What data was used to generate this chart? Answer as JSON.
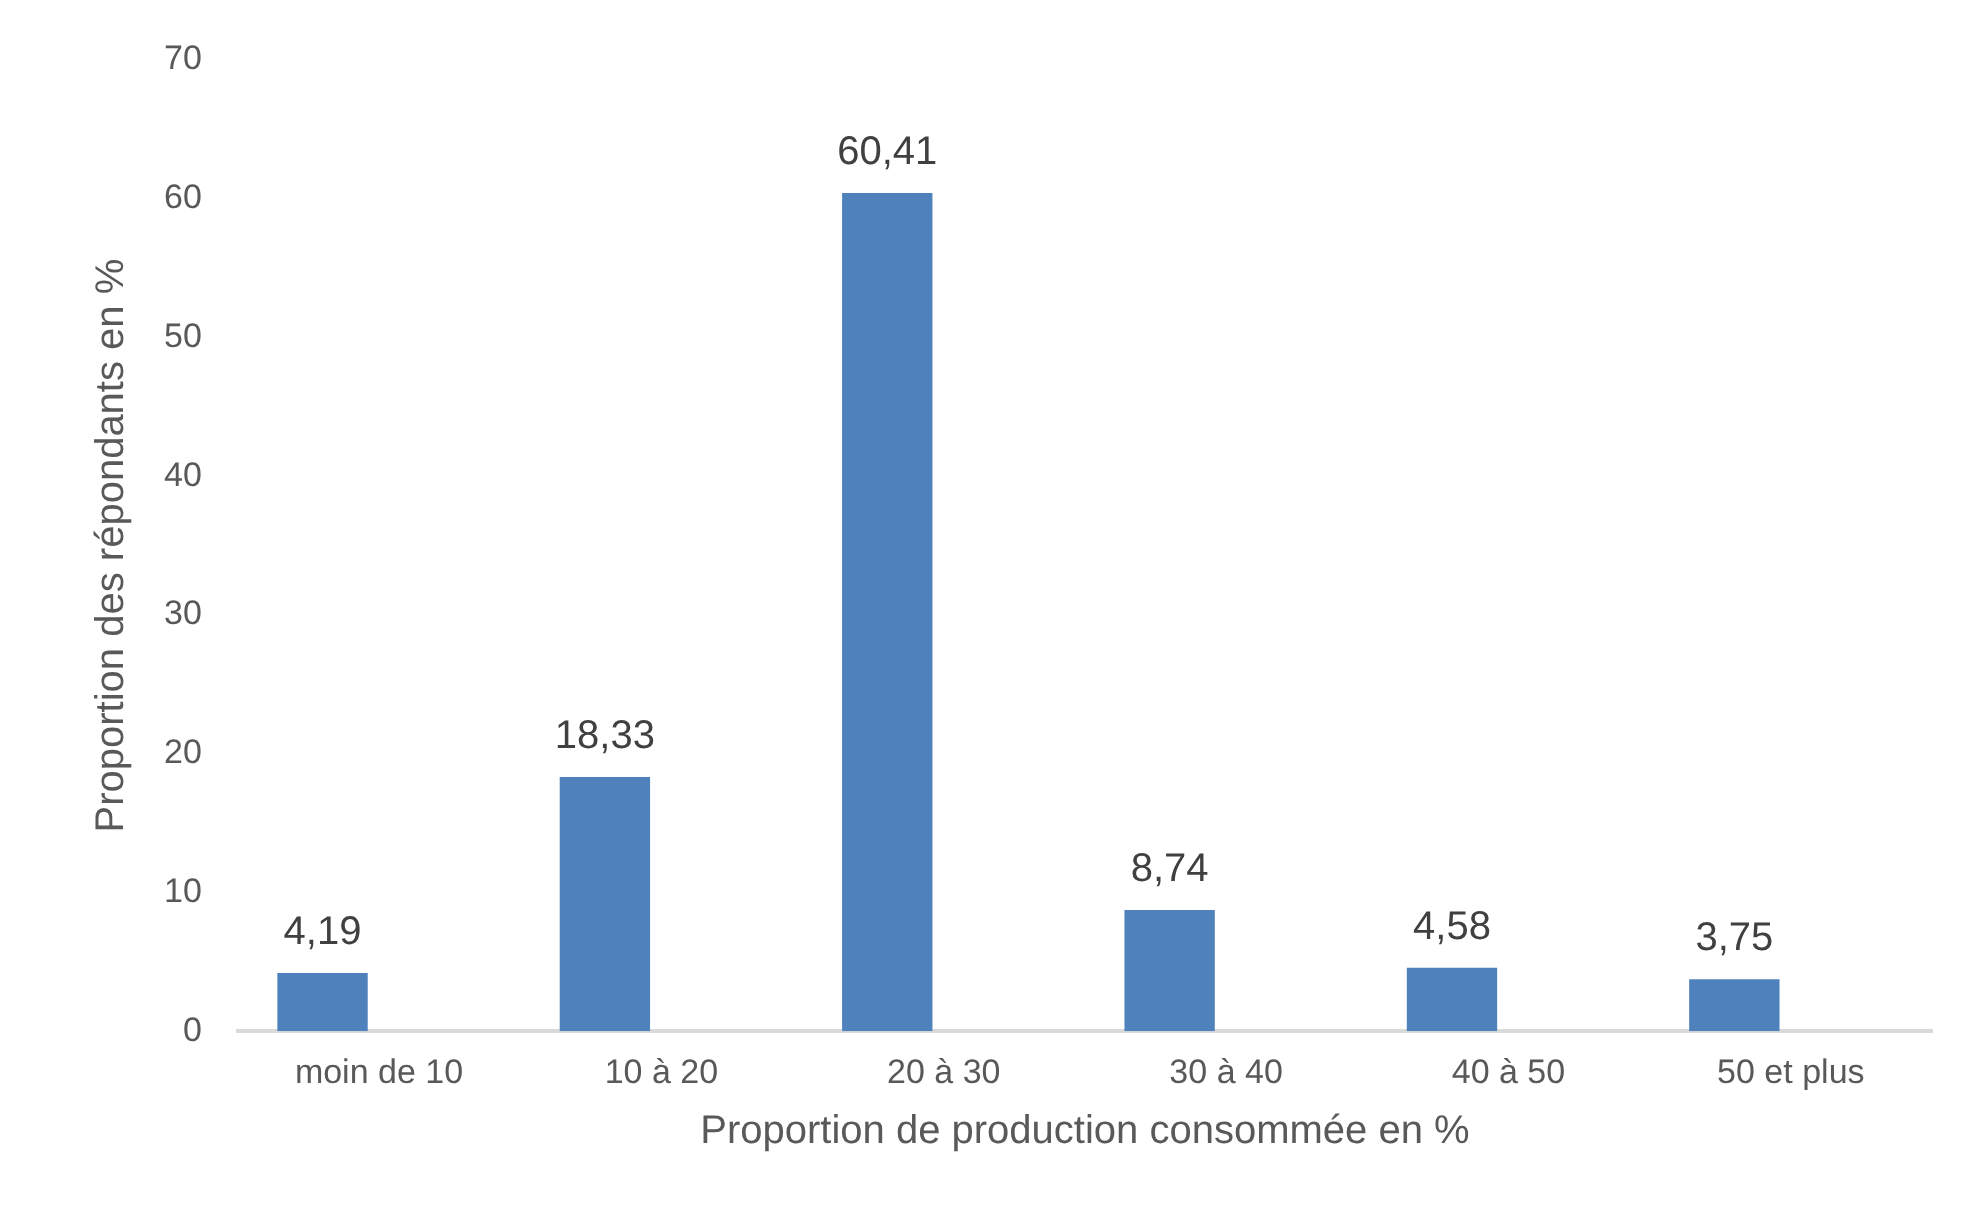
{
  "chart_data": {
    "type": "bar",
    "xlabel": "Proportion de production consommée en %",
    "ylabel": "Proportion des répondants en %",
    "categories": [
      "moin de 10",
      "10 à 20",
      "20 à 30",
      "30 à 40",
      "40 à 50",
      "50 et plus"
    ],
    "values": [
      4.19,
      18.33,
      60.41,
      8.74,
      4.58,
      3.75
    ],
    "color": "#4f81bd",
    "value_labels": [
      "4,19",
      "18,33",
      "60,41",
      "8,74",
      "4,58",
      "3,75"
    ],
    "ylim": [
      0,
      70
    ],
    "yticks": [
      0,
      10,
      20,
      30,
      40,
      50,
      60,
      70
    ],
    "grid": false,
    "legend": false
  }
}
